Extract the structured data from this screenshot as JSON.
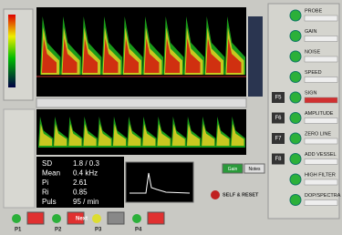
{
  "stats": {
    "labels": [
      "SD",
      "Mean",
      "Pi",
      "Ri",
      "Puls"
    ],
    "values": [
      "1.8 / 0.3",
      "0.4 kHz",
      "2.61",
      "0.85",
      "95 / min"
    ]
  },
  "panel": {
    "rows": [
      "PROBE",
      "GAIN",
      "NOISE",
      "SPEED",
      "SIGN",
      "AMPLITUDE",
      "ZERO LINE",
      "ADD VESSEL",
      "HIGH FILTER",
      "DOP/SPECTRA"
    ],
    "fkeys": [
      "F5",
      "F6",
      "F7",
      "F8"
    ]
  },
  "side_buttons": [
    "Gain",
    "Notes"
  ],
  "reset": "SELF & RESET",
  "bottom": {
    "buttons": [
      "P1",
      "P2",
      "P3",
      "P4"
    ],
    "next": "Next"
  }
}
